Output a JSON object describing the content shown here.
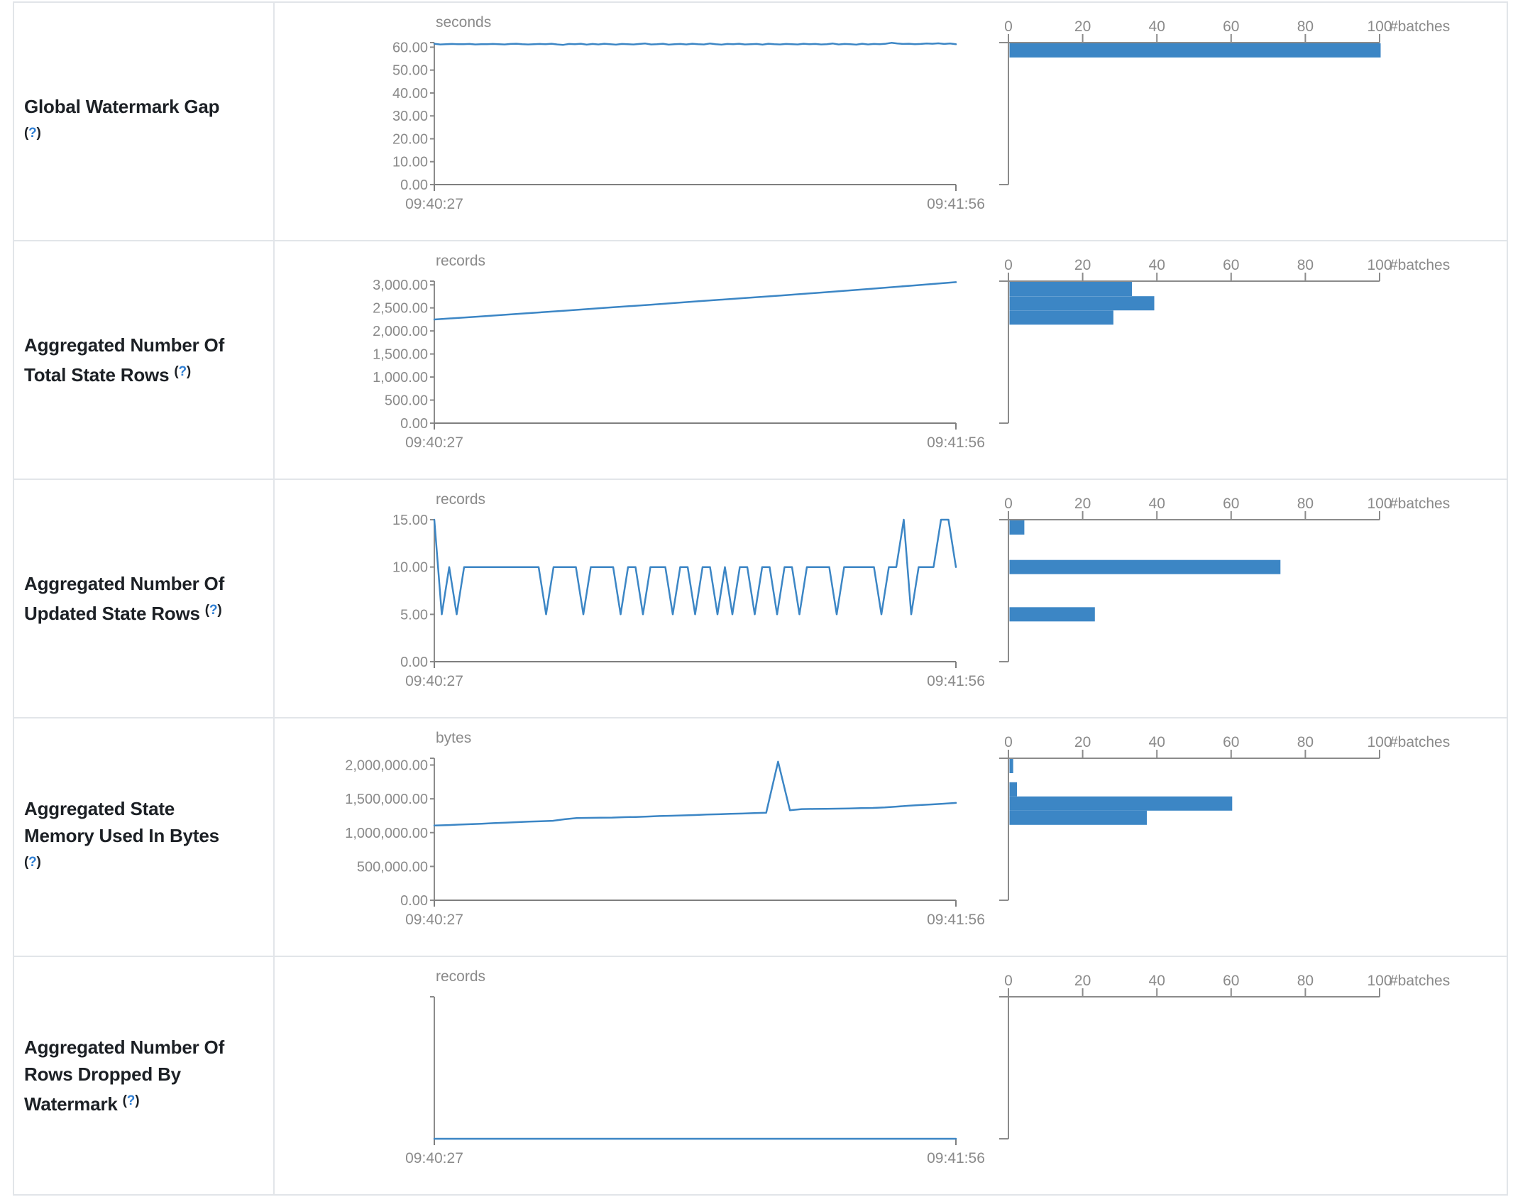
{
  "page": {
    "background": "#ffffff",
    "accent_blue": "#3c86c5",
    "axis_gray": "#8b8b8b",
    "text_gray": "#8a8a8a",
    "label_color": "#1c2025",
    "help_link_color": "#2e7ed3",
    "border_color": "#e2e5e9",
    "help_marker": "?"
  },
  "axis_shared": {
    "x_start_label": "09:40:27",
    "x_end_label": "09:41:56",
    "hist_ticks": [
      0,
      20,
      40,
      60,
      80,
      100
    ],
    "hist_axis_label": "#batches",
    "hist_max": 100
  },
  "rows": [
    {
      "name": "global-watermark-gap",
      "label_lines": [
        "Global Watermark Gap",
        "(?)"
      ],
      "chart_data": {
        "type": "line",
        "unit": "seconds",
        "y_max": 62,
        "y_ticks": [
          {
            "v": 60,
            "label": "60.00"
          },
          {
            "v": 50,
            "label": "50.00"
          },
          {
            "v": 40,
            "label": "40.00"
          },
          {
            "v": 30,
            "label": "30.00"
          },
          {
            "v": 20,
            "label": "20.00"
          },
          {
            "v": 10,
            "label": "10.00"
          },
          {
            "v": 0,
            "label": "0.00"
          }
        ],
        "series": [
          61.5,
          61.2,
          61.3,
          61.4,
          61.3,
          61.3,
          61.4,
          61.2,
          61.3,
          61.3,
          61.4,
          61.3,
          61.2,
          61.4,
          61.5,
          61.3,
          61.2,
          61.3,
          61.4,
          61.3,
          61.5,
          61.2,
          61.0,
          61.4,
          61.3,
          61.5,
          61.1,
          61.4,
          61.2,
          61.5,
          61.3,
          61.1,
          61.4,
          61.3,
          61.2,
          61.4,
          61.6,
          61.2,
          61.3,
          61.5,
          61.1,
          61.3,
          61.4,
          61.2,
          61.5,
          61.3,
          61.2,
          61.6,
          61.3,
          61.1,
          61.4,
          61.3,
          61.5,
          61.2,
          61.3,
          61.4,
          61.1,
          61.5,
          61.3,
          61.2,
          61.4,
          61.3,
          61.2,
          61.5,
          61.3,
          61.4,
          61.2,
          61.3,
          61.6,
          61.2,
          61.4,
          61.3,
          61.1,
          61.5,
          61.2,
          61.4,
          61.3,
          61.5,
          61.9,
          61.6,
          61.4,
          61.5,
          61.3,
          61.4,
          61.6,
          61.5,
          61.7,
          61.4,
          61.6,
          61.3
        ],
        "histogram_bins": [
          {
            "count": 100,
            "center": 58.6
          }
        ]
      }
    },
    {
      "name": "aggregated-number-of-total-state-rows",
      "label_lines": [
        "Aggregated Number Of",
        "Total State Rows (?)"
      ],
      "chart_data": {
        "type": "line",
        "unit": "records",
        "y_max": 3080,
        "y_ticks": [
          {
            "v": 3000,
            "label": "3,000.00"
          },
          {
            "v": 2500,
            "label": "2,500.00"
          },
          {
            "v": 2000,
            "label": "2,000.00"
          },
          {
            "v": 1500,
            "label": "1,500.00"
          },
          {
            "v": 1000,
            "label": "1,000.00"
          },
          {
            "v": 500,
            "label": "500.00"
          },
          {
            "v": 0,
            "label": "0.00"
          }
        ],
        "series": [
          2248,
          2310,
          2375,
          2440,
          2505,
          2570,
          2640,
          2705,
          2770,
          2840,
          2910,
          2985,
          3058
        ],
        "histogram_bins": [
          {
            "count": 33,
            "center": 2910
          },
          {
            "count": 39,
            "center": 2600
          },
          {
            "count": 28,
            "center": 2290
          }
        ]
      }
    },
    {
      "name": "aggregated-number-of-updated-state-rows",
      "label_lines": [
        "Aggregated Number Of",
        "Updated State Rows (?)"
      ],
      "chart_data": {
        "type": "line",
        "unit": "records",
        "y_max": 15,
        "y_ticks": [
          {
            "v": 15,
            "label": "15.00"
          },
          {
            "v": 10,
            "label": "10.00"
          },
          {
            "v": 5,
            "label": "5.00"
          },
          {
            "v": 0,
            "label": "0.00"
          }
        ],
        "series": [
          15,
          5,
          10,
          5,
          10,
          10,
          10,
          10,
          10,
          10,
          10,
          10,
          10,
          10,
          10,
          5,
          10,
          10,
          10,
          10,
          5,
          10,
          10,
          10,
          10,
          5,
          10,
          10,
          5,
          10,
          10,
          10,
          5,
          10,
          10,
          5,
          10,
          10,
          5,
          10,
          5,
          10,
          10,
          5,
          10,
          10,
          5,
          10,
          10,
          5,
          10,
          10,
          10,
          10,
          5,
          10,
          10,
          10,
          10,
          10,
          5,
          10,
          10,
          15,
          5,
          10,
          10,
          10,
          15,
          15,
          10
        ],
        "histogram_bins": [
          {
            "count": 4,
            "center": 14.2
          },
          {
            "count": 73,
            "center": 10
          },
          {
            "count": 23,
            "center": 5
          }
        ]
      }
    },
    {
      "name": "aggregated-state-memory-used-in-bytes",
      "label_lines": [
        "Aggregated State",
        "Memory Used In Bytes",
        "(?)"
      ],
      "chart_data": {
        "type": "line",
        "unit": "bytes",
        "y_max": 2100000,
        "y_ticks": [
          {
            "v": 2000000,
            "label": "2,000,000.00"
          },
          {
            "v": 1500000,
            "label": "1,500,000.00"
          },
          {
            "v": 1000000,
            "label": "1,000,000.00"
          },
          {
            "v": 500000,
            "label": "500,000.00"
          },
          {
            "v": 0,
            "label": "0.00"
          }
        ],
        "series": [
          1105000,
          1110000,
          1118000,
          1125000,
          1132000,
          1140000,
          1148000,
          1155000,
          1162000,
          1168000,
          1175000,
          1198000,
          1215000,
          1218000,
          1220000,
          1222000,
          1228000,
          1232000,
          1238000,
          1245000,
          1250000,
          1255000,
          1260000,
          1268000,
          1272000,
          1278000,
          1282000,
          1288000,
          1295000,
          2050000,
          1330000,
          1348000,
          1350000,
          1352000,
          1355000,
          1358000,
          1362000,
          1365000,
          1372000,
          1385000,
          1398000,
          1408000,
          1418000,
          1428000,
          1440000
        ],
        "histogram_bins": [
          {
            "count": 1,
            "center": 1985000
          },
          {
            "count": 2,
            "center": 1640000
          },
          {
            "count": 60,
            "center": 1430000
          },
          {
            "count": 37,
            "center": 1220000
          }
        ]
      }
    },
    {
      "name": "aggregated-number-of-rows-dropped-by-watermark",
      "label_lines": [
        "Aggregated Number Of",
        "Rows Dropped By",
        "Watermark (?)"
      ],
      "chart_data": {
        "type": "line",
        "unit": "records",
        "y_max": null,
        "y_ticks": [],
        "series": [
          0,
          0,
          0,
          0,
          0,
          0,
          0,
          0,
          0,
          0
        ],
        "histogram_bins": []
      }
    }
  ]
}
